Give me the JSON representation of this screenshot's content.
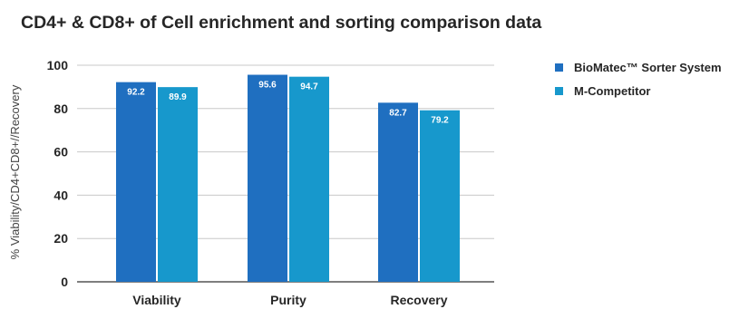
{
  "chart_data": {
    "type": "bar",
    "title": "CD4+ & CD8+ of Cell enrichment and sorting comparison data",
    "xlabel": "",
    "ylabel": "% Viability/CD4+CD8+//Recovery",
    "ylim": [
      0,
      100
    ],
    "yticks": [
      0,
      20,
      40,
      60,
      80,
      100
    ],
    "grid": true,
    "legend_position": "right",
    "categories": [
      "Viability",
      "Purity",
      "Recovery"
    ],
    "series": [
      {
        "name": "BioMatec™ Sorter System",
        "color": "#1f6fc0",
        "values": [
          92.2,
          95.6,
          82.7
        ],
        "labels": [
          "92.2",
          "95.6",
          "82.7"
        ]
      },
      {
        "name": "M-Competitor",
        "color": "#1798cc",
        "values": [
          89.9,
          94.7,
          79.2
        ],
        "labels": [
          "89.9",
          "94.7",
          "79.2"
        ]
      }
    ]
  }
}
